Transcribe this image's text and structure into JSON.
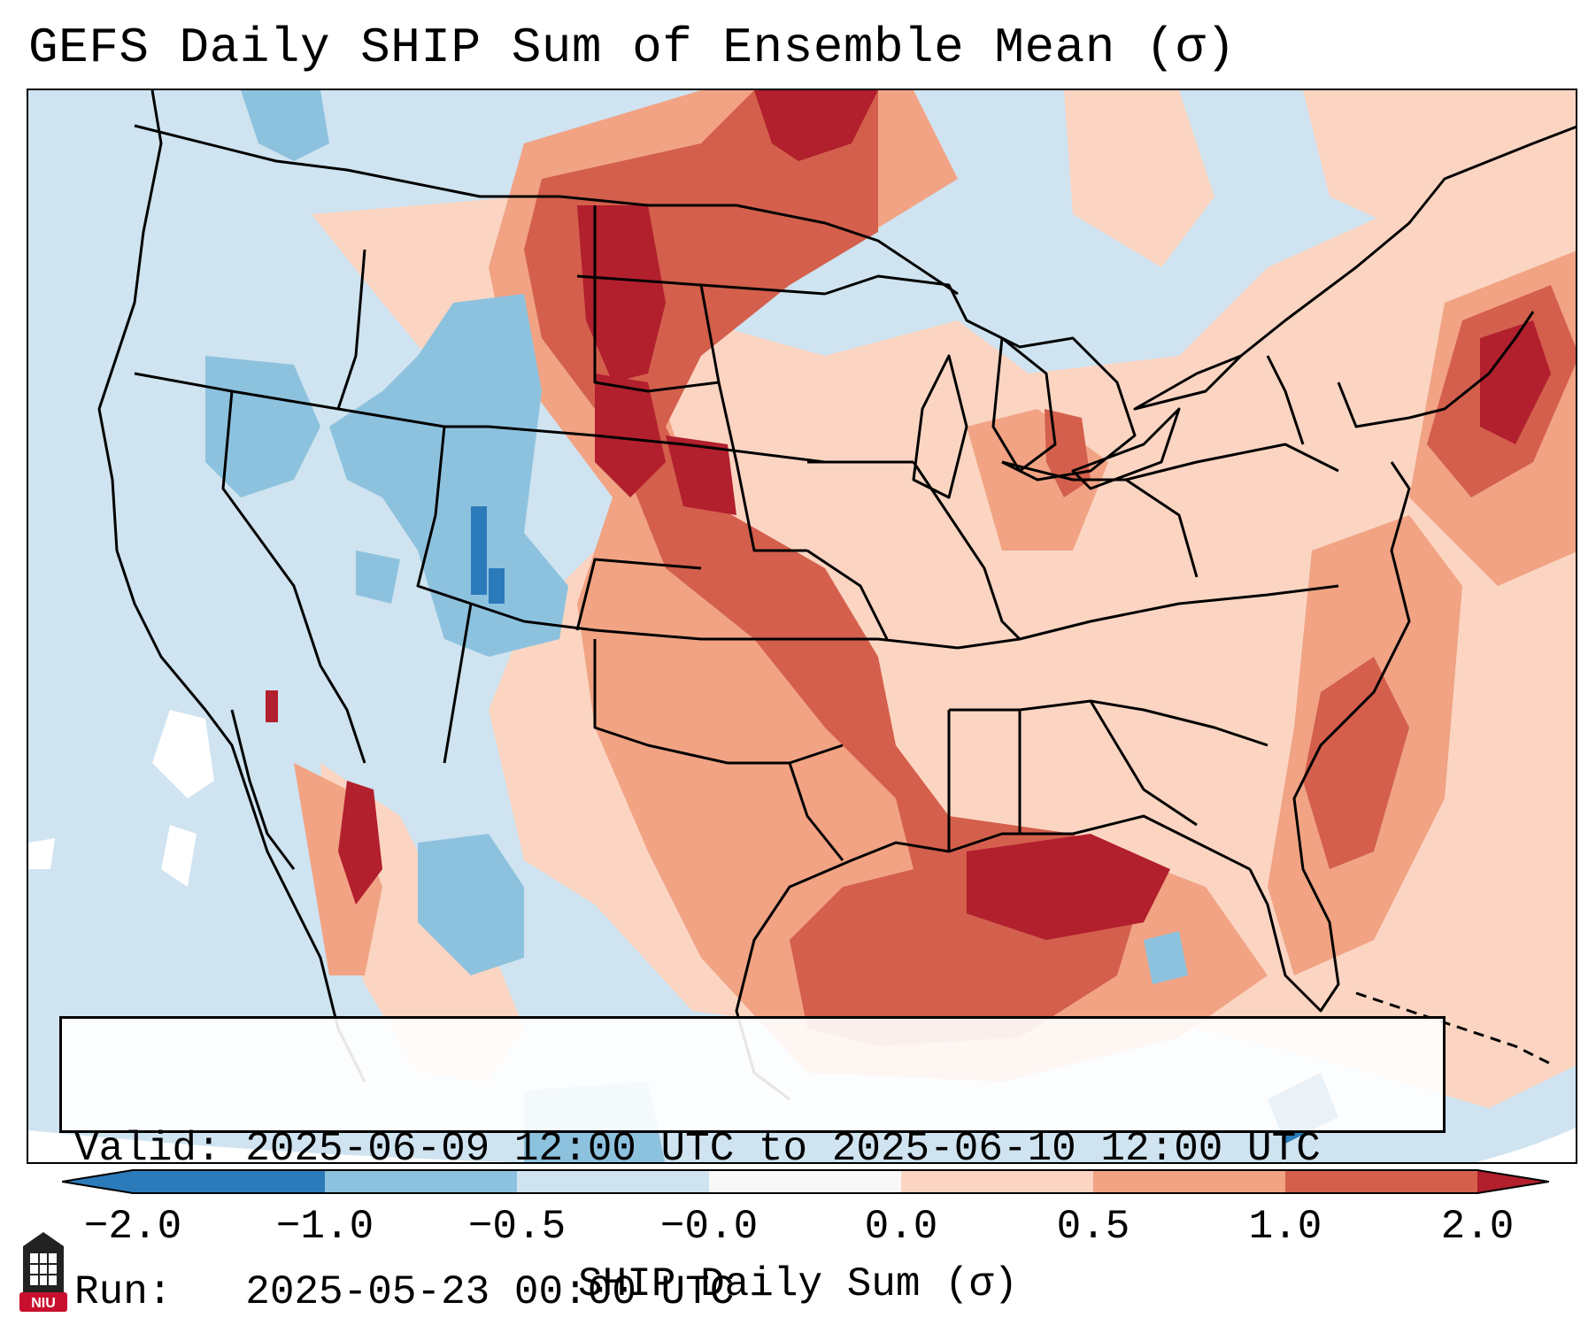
{
  "title": "GEFS Daily SHIP Sum of Ensemble Mean (σ)",
  "info": {
    "valid_line": "Valid: 2025-06-09 12:00 UTC to 2025-06-10 12:00 UTC",
    "run_line": "Run:   2025-05-23 00:00 UTC"
  },
  "colorbar": {
    "label": "SHIP Daily Sum (σ)",
    "ticks": [
      "−2.0",
      "−1.0",
      "−0.5",
      "−0.0",
      "0.0",
      "0.5",
      "1.0",
      "2.0"
    ],
    "colors": [
      "#2b7bbb",
      "#8dc2de",
      "#cfe3f0",
      "#f8f8f8",
      "#fbd5c2",
      "#f1a384",
      "#d35f4c",
      "#b21f2d"
    ]
  },
  "logo": {
    "text": "NIU"
  }
}
